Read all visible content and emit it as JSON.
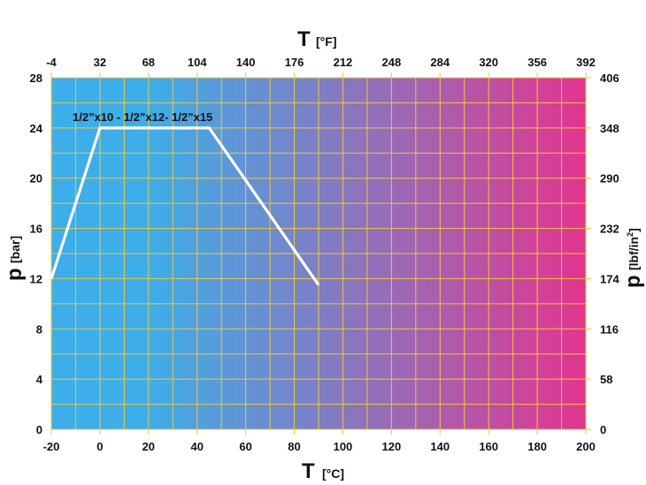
{
  "chart_data": {
    "type": "line",
    "x_bottom": {
      "symbol": "T",
      "unit": "[°C]",
      "range": [
        -20,
        200
      ],
      "ticks": [
        "-20",
        "0",
        "20",
        "40",
        "60",
        "80",
        "100",
        "120",
        "140",
        "160",
        "180",
        "200"
      ]
    },
    "x_top": {
      "symbol": "T",
      "unit": "[°F]",
      "range": [
        -4,
        392
      ],
      "ticks": [
        "-4",
        "32",
        "68",
        "104",
        "140",
        "176",
        "212",
        "248",
        "284",
        "320",
        "356",
        "392"
      ]
    },
    "y_left": {
      "symbol": "p",
      "unit": "[bar]",
      "range": [
        0,
        28
      ],
      "ticks": [
        "0",
        "4",
        "8",
        "12",
        "16",
        "20",
        "24",
        "28"
      ]
    },
    "y_right": {
      "symbol": "p",
      "unit_base": "[lbf/in",
      "unit_sup": "2",
      "unit_close": "]",
      "range": [
        0,
        406
      ],
      "ticks": [
        "0",
        "58",
        "116",
        "174",
        "232",
        "290",
        "348",
        "406"
      ]
    },
    "grid": true,
    "grid_color": "#f0c83a",
    "background_gradient": [
      "#3daee9",
      "#3daee9",
      "#e2358f"
    ],
    "series": [
      {
        "name": "1/2”x10 - 1/2”x12- 1/2”x15",
        "color": "#ffffff",
        "x": [
          -20,
          0,
          45,
          90
        ],
        "y": [
          12,
          24,
          24,
          11.5
        ]
      }
    ]
  }
}
